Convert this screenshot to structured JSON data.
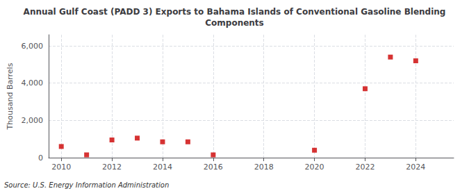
{
  "chart_data": {
    "type": "scatter",
    "title": "Annual Gulf Coast (PADD 3) Exports to Bahama Islands of Conventional Gasoline Blending\nComponents",
    "ylabel": "Thousand Barrels",
    "annotations": [
      "Source: U.S. Energy Information Administration"
    ],
    "x": [
      2010,
      2011,
      2012,
      2013,
      2014,
      2015,
      2016,
      2020,
      2022,
      2023,
      2024
    ],
    "values": [
      600,
      150,
      950,
      1050,
      850,
      850,
      150,
      400,
      3700,
      5400,
      5200
    ],
    "color": "#cc0000",
    "marker": "square",
    "xlim": [
      2009.5,
      2025.5
    ],
    "ylim": [
      0,
      6600
    ],
    "xticks": [
      2010,
      2012,
      2014,
      2016,
      2018,
      2020,
      2022,
      2024
    ],
    "yticks": [
      0,
      {
        "value": 2000,
        "label": "2,000"
      },
      {
        "value": 4000,
        "label": "4,000"
      },
      {
        "value": 6000,
        "label": "6,000"
      }
    ],
    "grid": true
  }
}
